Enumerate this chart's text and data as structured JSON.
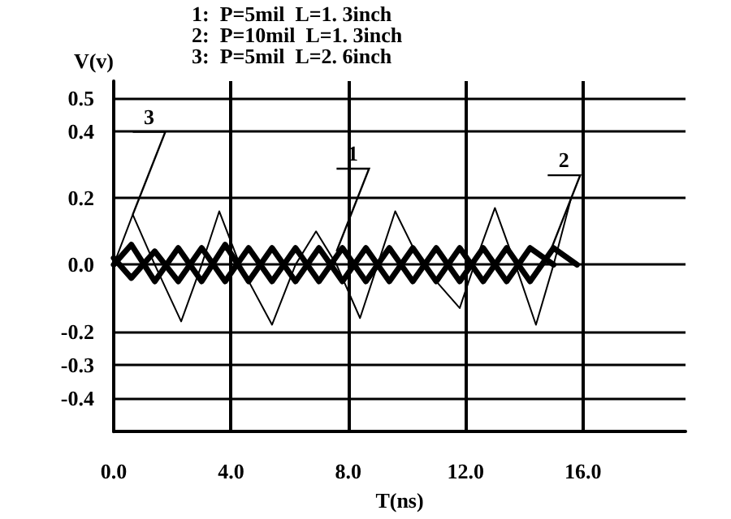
{
  "chart_data": {
    "type": "line",
    "xlabel": "T(ns)",
    "ylabel": "V(v)",
    "annotations": [
      "1:  P=5mil  L=1. 3inch",
      "2:  P=10mil  L=1. 3inch",
      "3:  P=5mil  L=2. 6inch",
      {
        "text": "3",
        "x": 0.65,
        "y": 0.15
      },
      {
        "text": "1",
        "x": 7.6,
        "y": 0.04
      },
      {
        "text": "2",
        "x": 14.8,
        "y": 0.02
      }
    ],
    "series": [
      {
        "color": "#000000",
        "x": [
          0,
          0.6,
          1.4,
          2.2,
          3.0,
          3.8,
          4.6,
          5.4,
          6.2,
          7.0,
          7.8,
          8.6,
          9.4,
          10.2,
          11.0,
          11.8,
          12.6,
          13.4,
          14.2,
          15.0
        ],
        "values": [
          0.02,
          -0.04,
          0.04,
          -0.05,
          0.05,
          -0.05,
          0.05,
          -0.05,
          0.05,
          -0.05,
          0.05,
          -0.05,
          0.05,
          -0.05,
          0.05,
          -0.05,
          0.05,
          -0.05,
          0.05,
          0.0
        ]
      },
      {
        "color": "#000000",
        "x": [
          0,
          0.6,
          1.4,
          2.2,
          3.0,
          3.8,
          4.6,
          5.4,
          6.2,
          7.0,
          7.8,
          8.6,
          9.4,
          10.2,
          11.0,
          11.8,
          12.6,
          13.4,
          14.2,
          15.0,
          15.8
        ],
        "values": [
          0.0,
          0.06,
          -0.05,
          0.05,
          -0.05,
          0.06,
          -0.05,
          0.05,
          -0.05,
          0.05,
          -0.05,
          0.05,
          -0.05,
          0.05,
          -0.05,
          0.05,
          -0.05,
          0.05,
          -0.05,
          0.05,
          0.0
        ]
      },
      {
        "color": "#000000",
        "x": [
          0,
          0.65,
          1.4,
          2.3,
          3.0,
          3.6,
          4.3,
          5.4,
          6.2,
          6.9,
          7.6,
          8.4,
          9.0,
          9.6,
          10.5,
          11.8,
          12.3,
          13.0,
          13.7,
          14.4,
          15.0,
          15.6
        ],
        "values": [
          0.0,
          0.15,
          0.0,
          -0.17,
          0.0,
          0.16,
          0.0,
          -0.18,
          0.0,
          0.1,
          0.0,
          -0.16,
          0.0,
          0.16,
          0.0,
          -0.13,
          0.0,
          0.17,
          0.0,
          -0.18,
          0.0,
          0.2
        ]
      }
    ],
    "xlim": [
      0,
      19.5
    ],
    "xticks": [
      {
        "value": 0,
        "label": "0.0"
      },
      {
        "value": 4,
        "label": "4.0"
      },
      {
        "value": 8,
        "label": "8.0"
      },
      {
        "value": 12,
        "label": "12.0"
      },
      {
        "value": 16,
        "label": "16.0"
      }
    ],
    "ylim": [
      -0.5,
      0.55
    ],
    "yticks": [
      {
        "value": 0.5,
        "label": "0.5"
      },
      {
        "value": 0.4,
        "label": "0.4"
      },
      {
        "value": 0.2,
        "label": "0.2"
      },
      {
        "value": 0,
        "label": "0.0"
      },
      {
        "value": -0.2,
        "label": "-0.2"
      },
      {
        "value": -0.3,
        "label": "-0.3"
      },
      {
        "value": -0.4,
        "label": "-0.4"
      }
    ],
    "grid": true,
    "marker": "none",
    "line_style": "solid"
  }
}
